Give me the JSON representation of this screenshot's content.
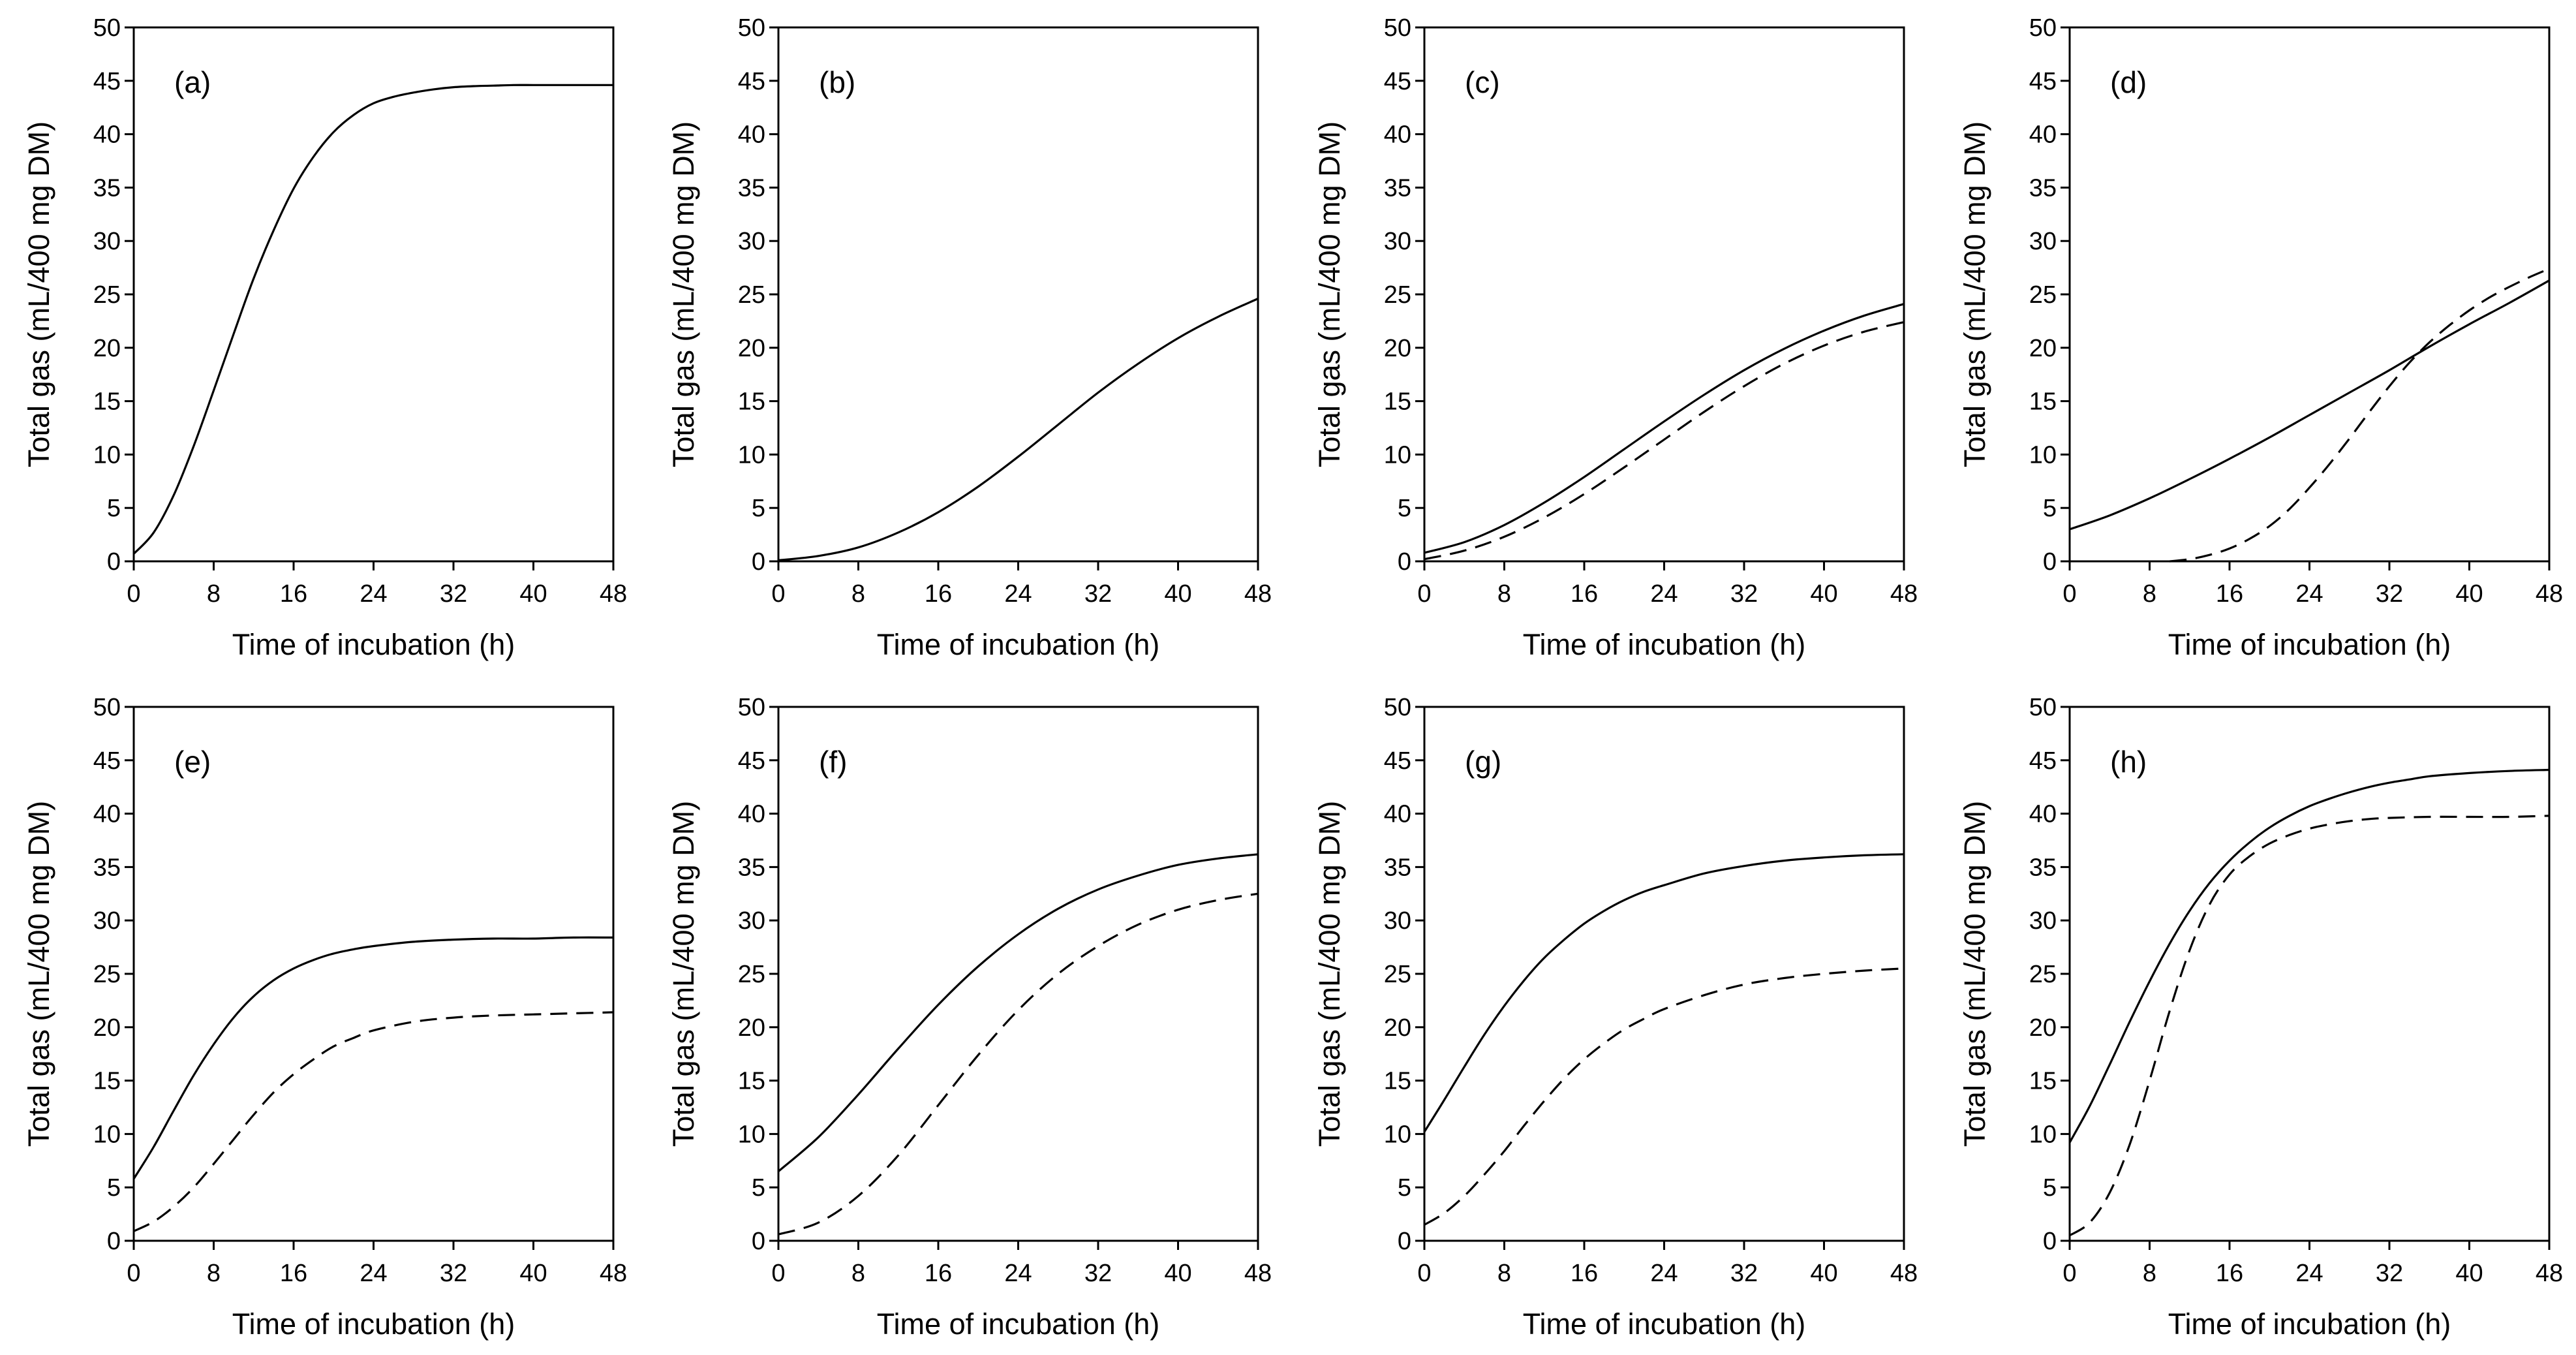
{
  "chart_data": [
    {
      "type": "line",
      "panel_label": "(a)",
      "xlabel": "Time of incubation  (h)",
      "ylabel": "Total  gas  (mL/400 mg DM)",
      "xlim": [
        0,
        48
      ],
      "ylim": [
        0,
        50
      ],
      "x_ticks": [
        0,
        8,
        16,
        24,
        32,
        40,
        48
      ],
      "y_ticks": [
        0,
        5,
        10,
        15,
        20,
        25,
        30,
        35,
        40,
        45,
        50
      ],
      "series": [
        {
          "name": "solid",
          "style": "solid",
          "x": [
            0,
            2,
            4,
            6,
            8,
            10,
            12,
            14,
            16,
            18,
            20,
            22,
            24,
            26,
            28,
            30,
            32,
            34,
            36,
            38,
            40,
            42,
            44,
            46,
            48
          ],
          "y": [
            0.7,
            2.7,
            6.2,
            10.8,
            16.0,
            21.3,
            26.5,
            31.0,
            34.9,
            37.9,
            40.2,
            41.8,
            42.9,
            43.5,
            43.9,
            44.2,
            44.4,
            44.5,
            44.55,
            44.6,
            44.6,
            44.6,
            44.6,
            44.6,
            44.6
          ]
        }
      ]
    },
    {
      "type": "line",
      "panel_label": "(b)",
      "xlabel": "Time of incubation  (h)",
      "ylabel": "Total  gas  (mL/400 mg DM)",
      "xlim": [
        0,
        48
      ],
      "ylim": [
        0,
        50
      ],
      "x_ticks": [
        0,
        8,
        16,
        24,
        32,
        40,
        48
      ],
      "y_ticks": [
        0,
        5,
        10,
        15,
        20,
        25,
        30,
        35,
        40,
        45,
        50
      ],
      "series": [
        {
          "name": "solid",
          "style": "solid",
          "x": [
            0,
            4,
            8,
            12,
            16,
            20,
            24,
            28,
            32,
            36,
            40,
            44,
            48
          ],
          "y": [
            0.1,
            0.5,
            1.3,
            2.7,
            4.6,
            7.0,
            9.8,
            12.8,
            15.8,
            18.5,
            20.9,
            22.9,
            24.6
          ]
        }
      ]
    },
    {
      "type": "line",
      "panel_label": "(c)",
      "xlabel": "Time of incubation  (h)",
      "ylabel": "Total  gas  (mL/400 mg DM)",
      "xlim": [
        0,
        48
      ],
      "ylim": [
        0,
        50
      ],
      "x_ticks": [
        0,
        8,
        16,
        24,
        32,
        40,
        48
      ],
      "y_ticks": [
        0,
        5,
        10,
        15,
        20,
        25,
        30,
        35,
        40,
        45,
        50
      ],
      "series": [
        {
          "name": "solid",
          "style": "solid",
          "x": [
            0,
            4,
            8,
            12,
            16,
            20,
            24,
            28,
            32,
            36,
            40,
            44,
            48
          ],
          "y": [
            0.8,
            1.8,
            3.4,
            5.5,
            7.9,
            10.5,
            13.1,
            15.6,
            17.9,
            19.9,
            21.6,
            23.0,
            24.1
          ]
        },
        {
          "name": "dashed",
          "style": "dashed",
          "x": [
            0,
            4,
            8,
            12,
            16,
            20,
            24,
            28,
            32,
            36,
            40,
            44,
            48
          ],
          "y": [
            0.2,
            1.0,
            2.3,
            4.1,
            6.3,
            8.8,
            11.4,
            14.0,
            16.4,
            18.5,
            20.2,
            21.5,
            22.4
          ]
        }
      ]
    },
    {
      "type": "line",
      "panel_label": "(d)",
      "xlabel": "Time of incubation  (h)",
      "ylabel": "Total  gas  (mL/400 mg DM)",
      "xlim": [
        0,
        48
      ],
      "ylim": [
        0,
        50
      ],
      "x_ticks": [
        0,
        8,
        16,
        24,
        32,
        40,
        48
      ],
      "y_ticks": [
        0,
        5,
        10,
        15,
        20,
        25,
        30,
        35,
        40,
        45,
        50
      ],
      "series": [
        {
          "name": "solid",
          "style": "solid",
          "x": [
            0,
            4,
            8,
            12,
            16,
            20,
            24,
            28,
            32,
            36,
            40,
            44,
            48
          ],
          "y": [
            3.0,
            4.3,
            5.9,
            7.7,
            9.6,
            11.6,
            13.7,
            15.8,
            17.9,
            20.1,
            22.2,
            24.2,
            26.3
          ]
        },
        {
          "name": "dashed",
          "style": "dashed",
          "x": [
            10,
            12,
            14,
            16,
            18,
            20,
            22,
            24,
            26,
            28,
            30,
            32,
            34,
            36,
            38,
            40,
            42,
            44,
            46,
            48
          ],
          "y": [
            0,
            0.2,
            0.6,
            1.2,
            2.1,
            3.3,
            4.9,
            6.9,
            9.1,
            11.5,
            14.0,
            16.4,
            18.6,
            20.5,
            22.1,
            23.5,
            24.7,
            25.7,
            26.6,
            27.4
          ]
        }
      ]
    },
    {
      "type": "line",
      "panel_label": "(e)",
      "xlabel": "Time of incubation  (h)",
      "ylabel": "Total  gas  (mL/400 mg DM)",
      "xlim": [
        0,
        48
      ],
      "ylim": [
        0,
        50
      ],
      "x_ticks": [
        0,
        8,
        16,
        24,
        32,
        40,
        48
      ],
      "y_ticks": [
        0,
        5,
        10,
        15,
        20,
        25,
        30,
        35,
        40,
        45,
        50
      ],
      "series": [
        {
          "name": "solid",
          "style": "solid",
          "x": [
            0,
            2,
            4,
            6,
            8,
            10,
            12,
            14,
            16,
            18,
            20,
            22,
            24,
            28,
            32,
            36,
            40,
            44,
            48
          ],
          "y": [
            5.8,
            8.8,
            12.2,
            15.5,
            18.4,
            20.9,
            22.9,
            24.4,
            25.5,
            26.3,
            26.9,
            27.3,
            27.6,
            28.0,
            28.2,
            28.3,
            28.3,
            28.4,
            28.4
          ]
        },
        {
          "name": "dashed",
          "style": "dashed",
          "x": [
            0,
            2,
            4,
            6,
            8,
            10,
            12,
            14,
            16,
            18,
            20,
            22,
            24,
            28,
            32,
            36,
            40,
            44,
            48
          ],
          "y": [
            0.9,
            1.8,
            3.2,
            5.0,
            7.2,
            9.5,
            11.8,
            13.9,
            15.6,
            17.0,
            18.2,
            19.0,
            19.7,
            20.5,
            20.9,
            21.1,
            21.2,
            21.3,
            21.4
          ]
        }
      ]
    },
    {
      "type": "line",
      "panel_label": "(f)",
      "xlabel": "Time of incubation  (h)",
      "ylabel": "Total  gas  (mL/400 mg DM)",
      "xlim": [
        0,
        48
      ],
      "ylim": [
        0,
        50
      ],
      "x_ticks": [
        0,
        8,
        16,
        24,
        32,
        40,
        48
      ],
      "y_ticks": [
        0,
        5,
        10,
        15,
        20,
        25,
        30,
        35,
        40,
        45,
        50
      ],
      "series": [
        {
          "name": "solid",
          "style": "solid",
          "x": [
            0,
            4,
            8,
            12,
            16,
            20,
            24,
            28,
            32,
            36,
            40,
            44,
            48
          ],
          "y": [
            6.5,
            9.7,
            13.7,
            18.0,
            22.1,
            25.7,
            28.7,
            31.1,
            32.9,
            34.2,
            35.2,
            35.8,
            36.2
          ]
        },
        {
          "name": "dashed",
          "style": "dashed",
          "x": [
            0,
            4,
            8,
            12,
            16,
            20,
            24,
            28,
            32,
            36,
            40,
            44,
            48
          ],
          "y": [
            0.6,
            1.7,
            4.2,
            8.0,
            12.7,
            17.4,
            21.6,
            25.0,
            27.6,
            29.6,
            31.0,
            31.9,
            32.5
          ]
        }
      ]
    },
    {
      "type": "line",
      "panel_label": "(g)",
      "xlabel": "Time of incubation  (h)",
      "ylabel": "Total  gas  (mL/400 mg DM)",
      "xlim": [
        0,
        48
      ],
      "ylim": [
        0,
        50
      ],
      "x_ticks": [
        0,
        8,
        16,
        24,
        32,
        40,
        48
      ],
      "y_ticks": [
        0,
        5,
        10,
        15,
        20,
        25,
        30,
        35,
        40,
        45,
        50
      ],
      "series": [
        {
          "name": "solid",
          "style": "solid",
          "x": [
            0,
            2,
            4,
            6,
            8,
            10,
            12,
            14,
            16,
            18,
            20,
            22,
            24,
            28,
            32,
            36,
            40,
            44,
            48
          ],
          "y": [
            10.2,
            13.2,
            16.3,
            19.3,
            22.0,
            24.4,
            26.5,
            28.2,
            29.7,
            30.9,
            31.9,
            32.7,
            33.3,
            34.4,
            35.1,
            35.6,
            35.9,
            36.1,
            36.2
          ]
        },
        {
          "name": "dashed",
          "style": "dashed",
          "x": [
            0,
            2,
            4,
            6,
            8,
            10,
            12,
            14,
            16,
            18,
            20,
            22,
            24,
            28,
            32,
            36,
            40,
            44,
            48
          ],
          "y": [
            1.5,
            2.6,
            4.2,
            6.2,
            8.4,
            10.8,
            13.1,
            15.2,
            17.0,
            18.5,
            19.8,
            20.8,
            21.7,
            23.0,
            24.0,
            24.6,
            25.0,
            25.3,
            25.5
          ]
        }
      ]
    },
    {
      "type": "line",
      "panel_label": "(h)",
      "xlabel": "Time of incubation  (h)",
      "ylabel": "Total  gas  (mL/400 mg DM)",
      "xlim": [
        0,
        48
      ],
      "ylim": [
        0,
        50
      ],
      "x_ticks": [
        0,
        8,
        16,
        24,
        32,
        40,
        48
      ],
      "y_ticks": [
        0,
        5,
        10,
        15,
        20,
        25,
        30,
        35,
        40,
        45,
        50
      ],
      "series": [
        {
          "name": "solid",
          "style": "solid",
          "x": [
            0,
            2,
            4,
            6,
            8,
            10,
            12,
            14,
            16,
            18,
            20,
            22,
            24,
            26,
            28,
            30,
            32,
            34,
            36,
            40,
            44,
            48
          ],
          "y": [
            9.2,
            12.6,
            16.5,
            20.5,
            24.3,
            27.8,
            30.9,
            33.5,
            35.6,
            37.3,
            38.7,
            39.8,
            40.7,
            41.4,
            42.0,
            42.5,
            42.9,
            43.2,
            43.5,
            43.8,
            44.0,
            44.1
          ]
        },
        {
          "name": "dashed",
          "style": "dashed",
          "x": [
            0,
            2,
            4,
            6,
            8,
            10,
            12,
            14,
            16,
            18,
            20,
            22,
            24,
            26,
            28,
            30,
            32,
            36,
            40,
            44,
            48
          ],
          "y": [
            0.5,
            1.7,
            4.5,
            9.0,
            15.0,
            21.5,
            27.2,
            31.5,
            34.3,
            36.0,
            37.2,
            38.0,
            38.6,
            39.0,
            39.3,
            39.5,
            39.6,
            39.7,
            39.7,
            39.7,
            39.8
          ]
        }
      ]
    }
  ]
}
